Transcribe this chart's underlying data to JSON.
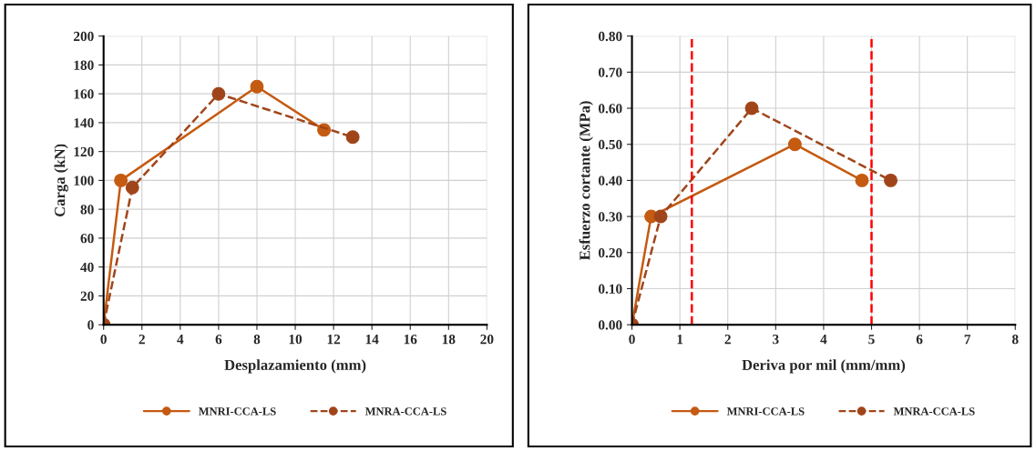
{
  "chart_data": [
    {
      "type": "line",
      "xlabel": "Desplazamiento (mm)",
      "ylabel": "Carga (kN)",
      "xlim": [
        0,
        20
      ],
      "xticks": [
        0,
        2,
        4,
        6,
        8,
        10,
        12,
        14,
        16,
        18,
        20
      ],
      "ylim": [
        0,
        200
      ],
      "yticks": [
        0,
        20,
        40,
        60,
        80,
        100,
        120,
        140,
        160,
        180,
        200
      ],
      "grid": true,
      "legend": "bottom",
      "marker": "circle",
      "series": [
        {
          "name": "MNRI-CCA-LS",
          "color": "#c55a11",
          "line_style": "solid",
          "x": [
            0,
            0.9,
            8,
            11.5
          ],
          "values": [
            0,
            100,
            165,
            135
          ]
        },
        {
          "name": "MNRA-CCA-LS",
          "color": "#a0451a",
          "line_style": "dashed",
          "x": [
            0,
            1.5,
            6,
            13
          ],
          "values": [
            0,
            95,
            160,
            130
          ]
        }
      ]
    },
    {
      "type": "line",
      "xlabel": "Deriva por mil (mm/mm)",
      "ylabel": "Esfuerzo cortante (MPa)",
      "xlim": [
        0,
        8
      ],
      "xticks": [
        0,
        1,
        2,
        3,
        4,
        5,
        6,
        7,
        8
      ],
      "ylim": [
        0,
        0.8
      ],
      "yticks": [
        {
          "value": 0,
          "label": "0.00"
        },
        {
          "value": 0.1,
          "label": "0.10"
        },
        {
          "value": 0.2,
          "label": "0.20"
        },
        {
          "value": 0.3,
          "label": "0.30"
        },
        {
          "value": 0.4,
          "label": "0.40"
        },
        {
          "value": 0.5,
          "label": "0.50"
        },
        {
          "value": 0.6,
          "label": "0.60"
        },
        {
          "value": 0.7,
          "label": "0.70"
        },
        {
          "value": 0.8,
          "label": "0.80"
        }
      ],
      "grid": true,
      "legend": "bottom",
      "marker": "circle",
      "series": [
        {
          "name": "MNRI-CCA-LS",
          "color": "#c55a11",
          "line_style": "solid",
          "x": [
            0,
            0.4,
            3.4,
            4.8
          ],
          "values": [
            0,
            0.3,
            0.5,
            0.4
          ]
        },
        {
          "name": "MNRA-CCA-LS",
          "color": "#a0451a",
          "line_style": "dashed",
          "x": [
            0,
            0.6,
            2.5,
            5.4
          ],
          "values": [
            0,
            0.3,
            0.6,
            0.4
          ]
        }
      ],
      "ref_lines": [
        {
          "axis": "x",
          "value": 1.25,
          "color": "#ff0000",
          "line_style": "dashed"
        },
        {
          "axis": "x",
          "value": 5,
          "color": "#ff0000",
          "line_style": "dashed"
        }
      ]
    }
  ]
}
